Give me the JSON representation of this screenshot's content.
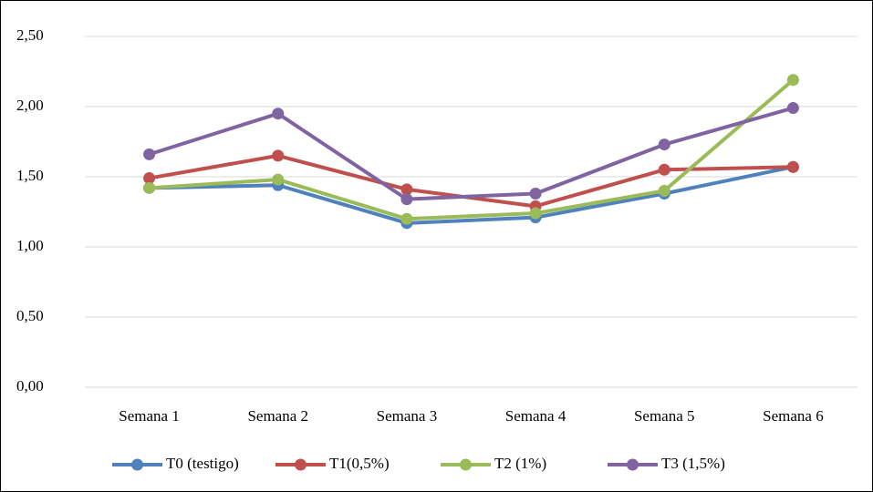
{
  "chart_data": {
    "type": "line",
    "categories": [
      "Semana 1",
      "Semana 2",
      "Semana 3",
      "Semana 4",
      "Semana 5",
      "Semana 6"
    ],
    "series": [
      {
        "name": "T0 (testigo)",
        "color": "#4f81bd",
        "values": [
          1.42,
          1.44,
          1.17,
          1.21,
          1.38,
          1.57
        ]
      },
      {
        "name": "T1(0,5%)",
        "color": "#c0504d",
        "values": [
          1.49,
          1.65,
          1.41,
          1.29,
          1.55,
          1.57
        ]
      },
      {
        "name": "T2 (1%)",
        "color": "#9bbb59",
        "values": [
          1.42,
          1.48,
          1.2,
          1.24,
          1.4,
          2.19
        ]
      },
      {
        "name": "T3 (1,5%)",
        "color": "#8064a2",
        "values": [
          1.66,
          1.95,
          1.34,
          1.38,
          1.73,
          1.99
        ]
      }
    ],
    "ylim": [
      0,
      2.5
    ],
    "yticks": [
      {
        "value": 0,
        "label": "0,00"
      },
      {
        "value": 0.5,
        "label": "0,50"
      },
      {
        "value": 1,
        "label": "1,00"
      },
      {
        "value": 1.5,
        "label": "1,50"
      },
      {
        "value": 2,
        "label": "2,00"
      },
      {
        "value": 2.5,
        "label": "2,50"
      }
    ],
    "grid": true,
    "legend": "bottom"
  }
}
